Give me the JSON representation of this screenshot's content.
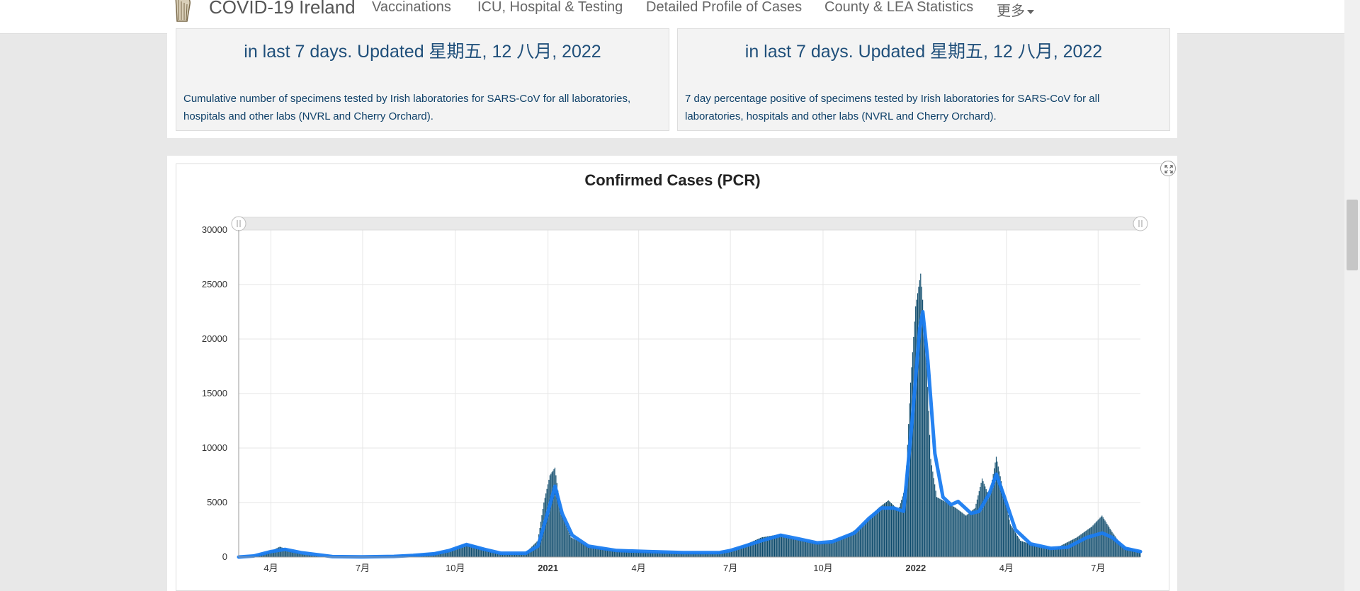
{
  "navbar": {
    "brand": "COVID-19 Ireland",
    "items": [
      {
        "label": "Vaccinations"
      },
      {
        "label": "ICU, Hospital & Testing"
      },
      {
        "label": "Detailed Profile of Cases"
      },
      {
        "label": "County & LEA Statistics"
      },
      {
        "label": "更多"
      }
    ]
  },
  "stats": {
    "left": {
      "title": "in last 7 days. Updated 星期五, 12 八月, 2022",
      "description": "Cumulative number of specimens tested by Irish laboratories for SARS-CoV for all laboratories, hospitals and other labs (NVRL and Cherry Orchard)."
    },
    "right": {
      "title": "in last 7 days. Updated 星期五, 12 八月, 2022",
      "description": "7 day percentage positive of specimens tested by Irish laboratories for SARS-CoV for all laboratories, hospitals and other labs (NVRL and Cherry Orchard)."
    }
  },
  "chart_data": {
    "type": "bar",
    "title": "Confirmed Cases (PCR)",
    "xlabel": "",
    "ylabel": "",
    "ylim": [
      0,
      30000
    ],
    "yticks": [
      0,
      5000,
      10000,
      15000,
      20000,
      25000,
      30000
    ],
    "xticks": [
      {
        "label": "4月",
        "date": "2020-04-01",
        "bold": false
      },
      {
        "label": "7月",
        "date": "2020-07-01",
        "bold": false
      },
      {
        "label": "10月",
        "date": "2020-10-01",
        "bold": false
      },
      {
        "label": "2021",
        "date": "2021-01-01",
        "bold": true
      },
      {
        "label": "4月",
        "date": "2021-04-01",
        "bold": false
      },
      {
        "label": "7月",
        "date": "2021-07-01",
        "bold": false
      },
      {
        "label": "10月",
        "date": "2021-10-01",
        "bold": false
      },
      {
        "label": "2022",
        "date": "2022-01-01",
        "bold": true
      },
      {
        "label": "4月",
        "date": "2022-04-01",
        "bold": false
      },
      {
        "label": "7月",
        "date": "2022-07-01",
        "bold": false
      }
    ],
    "xlim": [
      "2020-02-29",
      "2022-08-12"
    ],
    "grid": true,
    "range_selector": true,
    "colors": {
      "bars": "#0d4a6b",
      "line": "#1a7cf0"
    },
    "series": [
      {
        "kind": "bar",
        "points": [
          [
            "2020-02-29",
            0
          ],
          [
            "2020-03-15",
            100
          ],
          [
            "2020-03-31",
            500
          ],
          [
            "2020-04-10",
            950
          ],
          [
            "2020-04-20",
            600
          ],
          [
            "2020-05-05",
            200
          ],
          [
            "2020-06-01",
            20
          ],
          [
            "2020-07-01",
            10
          ],
          [
            "2020-08-01",
            100
          ],
          [
            "2020-08-20",
            200
          ],
          [
            "2020-09-10",
            400
          ],
          [
            "2020-09-25",
            600
          ],
          [
            "2020-10-10",
            1200
          ],
          [
            "2020-10-20",
            1100
          ],
          [
            "2020-11-05",
            500
          ],
          [
            "2020-11-20",
            300
          ],
          [
            "2020-12-10",
            400
          ],
          [
            "2020-12-22",
            1500
          ],
          [
            "2020-12-28",
            5000
          ],
          [
            "2021-01-03",
            7500
          ],
          [
            "2021-01-08",
            8200
          ],
          [
            "2021-01-14",
            4000
          ],
          [
            "2021-01-24",
            1800
          ],
          [
            "2021-02-10",
            1000
          ],
          [
            "2021-03-10",
            600
          ],
          [
            "2021-04-10",
            450
          ],
          [
            "2021-05-15",
            400
          ],
          [
            "2021-06-15",
            400
          ],
          [
            "2021-07-01",
            600
          ],
          [
            "2021-07-15",
            1100
          ],
          [
            "2021-08-01",
            1800
          ],
          [
            "2021-08-20",
            2100
          ],
          [
            "2021-09-05",
            1600
          ],
          [
            "2021-09-25",
            1300
          ],
          [
            "2021-10-05",
            1300
          ],
          [
            "2021-10-25",
            2000
          ],
          [
            "2021-11-10",
            3000
          ],
          [
            "2021-11-25",
            4500
          ],
          [
            "2021-12-05",
            5200
          ],
          [
            "2021-12-15",
            4300
          ],
          [
            "2021-12-22",
            6500
          ],
          [
            "2021-12-27",
            16000
          ],
          [
            "2022-01-01",
            23000
          ],
          [
            "2022-01-06",
            26000
          ],
          [
            "2022-01-11",
            20000
          ],
          [
            "2022-01-16",
            9000
          ],
          [
            "2022-01-22",
            5500
          ],
          [
            "2022-02-01",
            5000
          ],
          [
            "2022-02-10",
            4500
          ],
          [
            "2022-02-20",
            3800
          ],
          [
            "2022-03-01",
            4500
          ],
          [
            "2022-03-08",
            7200
          ],
          [
            "2022-03-15",
            5500
          ],
          [
            "2022-03-22",
            9200
          ],
          [
            "2022-03-28",
            6500
          ],
          [
            "2022-04-05",
            3000
          ],
          [
            "2022-04-15",
            1500
          ],
          [
            "2022-05-01",
            1000
          ],
          [
            "2022-05-20",
            800
          ],
          [
            "2022-06-10",
            1800
          ],
          [
            "2022-06-25",
            2800
          ],
          [
            "2022-07-05",
            3800
          ],
          [
            "2022-07-15",
            2300
          ],
          [
            "2022-07-25",
            1000
          ],
          [
            "2022-08-12",
            500
          ]
        ]
      },
      {
        "kind": "line",
        "points": [
          [
            "2020-02-29",
            0
          ],
          [
            "2020-03-15",
            100
          ],
          [
            "2020-04-01",
            500
          ],
          [
            "2020-04-15",
            700
          ],
          [
            "2020-05-01",
            400
          ],
          [
            "2020-06-01",
            40
          ],
          [
            "2020-07-01",
            15
          ],
          [
            "2020-08-01",
            60
          ],
          [
            "2020-08-20",
            150
          ],
          [
            "2020-09-10",
            300
          ],
          [
            "2020-09-25",
            600
          ],
          [
            "2020-10-12",
            1150
          ],
          [
            "2020-10-30",
            700
          ],
          [
            "2020-11-15",
            350
          ],
          [
            "2020-12-10",
            350
          ],
          [
            "2020-12-22",
            1000
          ],
          [
            "2020-12-30",
            3500
          ],
          [
            "2021-01-08",
            6500
          ],
          [
            "2021-01-15",
            4000
          ],
          [
            "2021-01-25",
            2000
          ],
          [
            "2021-02-10",
            1000
          ],
          [
            "2021-03-10",
            600
          ],
          [
            "2021-04-10",
            500
          ],
          [
            "2021-05-15",
            400
          ],
          [
            "2021-06-20",
            400
          ],
          [
            "2021-07-01",
            600
          ],
          [
            "2021-07-15",
            1000
          ],
          [
            "2021-08-01",
            1500
          ],
          [
            "2021-08-20",
            2000
          ],
          [
            "2021-09-05",
            1700
          ],
          [
            "2021-09-25",
            1300
          ],
          [
            "2021-10-10",
            1400
          ],
          [
            "2021-11-01",
            2200
          ],
          [
            "2021-11-15",
            3500
          ],
          [
            "2021-11-28",
            4500
          ],
          [
            "2021-12-10",
            4500
          ],
          [
            "2021-12-20",
            4200
          ],
          [
            "2021-12-28",
            12000
          ],
          [
            "2022-01-05",
            21000
          ],
          [
            "2022-01-08",
            22500
          ],
          [
            "2022-01-13",
            18000
          ],
          [
            "2022-01-20",
            9500
          ],
          [
            "2022-01-28",
            5500
          ],
          [
            "2022-02-05",
            4800
          ],
          [
            "2022-02-12",
            5100
          ],
          [
            "2022-02-25",
            4000
          ],
          [
            "2022-03-05",
            4200
          ],
          [
            "2022-03-15",
            5800
          ],
          [
            "2022-03-22",
            7600
          ],
          [
            "2022-03-30",
            5500
          ],
          [
            "2022-04-10",
            2500
          ],
          [
            "2022-04-25",
            1200
          ],
          [
            "2022-05-15",
            800
          ],
          [
            "2022-06-01",
            900
          ],
          [
            "2022-06-20",
            1800
          ],
          [
            "2022-07-05",
            2200
          ],
          [
            "2022-07-15",
            1800
          ],
          [
            "2022-07-28",
            800
          ],
          [
            "2022-08-12",
            500
          ]
        ]
      }
    ]
  }
}
